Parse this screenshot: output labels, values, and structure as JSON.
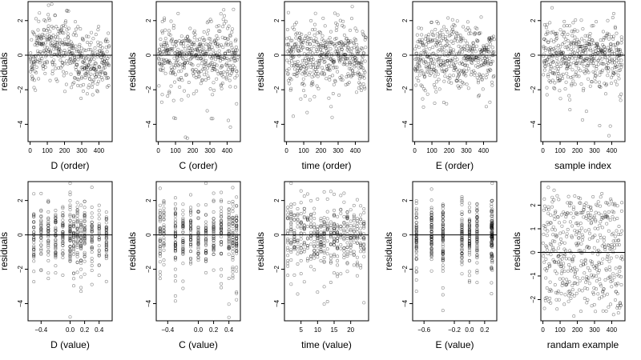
{
  "chart_data": [
    {
      "type": "scatter",
      "xlabel": "D (order)",
      "ylabel": "residuals",
      "xlim": [
        -12,
        477
      ],
      "ylim": [
        -5,
        3.1
      ],
      "xticks": [
        0,
        100,
        200,
        300,
        400
      ],
      "yticks": [
        -4,
        -2,
        0,
        2
      ],
      "hline": 0,
      "x_kind": "order",
      "n": 460,
      "pattern": "wave"
    },
    {
      "type": "scatter",
      "xlabel": "C (order)",
      "ylabel": "residuals",
      "xlim": [
        -12,
        477
      ],
      "ylim": [
        -5,
        3.1
      ],
      "xticks": [
        0,
        100,
        200,
        300,
        400
      ],
      "yticks": [
        -4,
        -2,
        0,
        2
      ],
      "hline": 0,
      "x_kind": "order",
      "n": 460,
      "pattern": "noise"
    },
    {
      "type": "scatter",
      "xlabel": "time (order)",
      "ylabel": "residuals",
      "xlim": [
        -12,
        477
      ],
      "ylim": [
        -5,
        3.1
      ],
      "xticks": [
        0,
        100,
        200,
        300,
        400
      ],
      "yticks": [
        -4,
        -2,
        0,
        2
      ],
      "hline": 0,
      "x_kind": "order",
      "n": 460,
      "pattern": "noise"
    },
    {
      "type": "scatter",
      "xlabel": "E (order)",
      "ylabel": "residuals",
      "xlim": [
        -12,
        477
      ],
      "ylim": [
        -5,
        3.1
      ],
      "xticks": [
        0,
        100,
        200,
        300,
        400
      ],
      "yticks": [
        -4,
        -2,
        0,
        2
      ],
      "hline": 0,
      "x_kind": "order",
      "n": 460,
      "pattern": "noise"
    },
    {
      "type": "scatter",
      "xlabel": "sample index",
      "ylabel": "residuals",
      "xlim": [
        -12,
        477
      ],
      "ylim": [
        -5,
        3.1
      ],
      "xticks": [
        0,
        100,
        200,
        300,
        400
      ],
      "yticks": [
        -4,
        -2,
        0,
        2
      ],
      "hline": 0,
      "x_kind": "order",
      "n": 460,
      "pattern": "noise"
    },
    {
      "type": "scatter",
      "xlabel": "D (value)",
      "ylabel": "residuals",
      "xlim": [
        -0.58,
        0.58
      ],
      "ylim": [
        -5,
        3.1
      ],
      "xticks": [
        -0.4,
        0.0,
        0.2,
        0.4
      ],
      "xticklabels": [
        "-0.4",
        "0.0",
        "0.2",
        "0.4"
      ],
      "yticks": [
        -4,
        -2,
        0,
        2
      ],
      "hline": 0,
      "x_kind": "discrete",
      "levels": [
        -0.5,
        -0.4,
        -0.3,
        -0.2,
        -0.1,
        0.0,
        0.05,
        0.1,
        0.15,
        0.2,
        0.3,
        0.4,
        0.5
      ],
      "n": 460,
      "pattern": "noise"
    },
    {
      "type": "scatter",
      "xlabel": "C (value)",
      "ylabel": "residuals",
      "xlim": [
        -0.55,
        0.55
      ],
      "ylim": [
        -5,
        3.1
      ],
      "xticks": [
        -0.4,
        0.0,
        0.2,
        0.4
      ],
      "xticklabels": [
        "-0.4",
        "0.0",
        "0.2",
        "0.4"
      ],
      "yticks": [
        -4,
        -2,
        0,
        2
      ],
      "hline": 0,
      "x_kind": "discrete",
      "levels": [
        -0.5,
        -0.45,
        -0.3,
        -0.2,
        -0.1,
        0.0,
        0.1,
        0.2,
        0.3,
        0.4,
        0.45,
        0.5
      ],
      "n": 460,
      "pattern": "noise"
    },
    {
      "type": "scatter",
      "xlabel": "time (value)",
      "ylabel": "residuals",
      "xlim": [
        0,
        25.4
      ],
      "ylim": [
        -5,
        3.1
      ],
      "xticks": [
        5,
        10,
        15,
        20
      ],
      "yticks": [
        -4,
        -2,
        0,
        2
      ],
      "hline": 0,
      "x_kind": "discrete",
      "levels": [
        1,
        2,
        3,
        4,
        5,
        6,
        7,
        8,
        9,
        10,
        11,
        12,
        13,
        14,
        15,
        16,
        17,
        18,
        19,
        20,
        21,
        22,
        23,
        24
      ],
      "n": 460,
      "pattern": "noise"
    },
    {
      "type": "scatter",
      "xlabel": "E (value)",
      "ylabel": "residuals",
      "xlim": [
        -0.75,
        0.36
      ],
      "ylim": [
        -5,
        3.1
      ],
      "xticks": [
        -0.6,
        -0.2,
        0.0,
        0.2
      ],
      "xticklabels": [
        "-0.6",
        "-0.2",
        "0.0",
        "0.2"
      ],
      "yticks": [
        -4,
        -2,
        0,
        2
      ],
      "hline": 0,
      "x_kind": "discrete",
      "levels": [
        -0.7,
        -0.5,
        -0.35,
        -0.1,
        0.0,
        0.1,
        0.29,
        0.3
      ],
      "n": 460,
      "pattern": "noise"
    },
    {
      "type": "scatter",
      "xlabel": "randam example",
      "ylabel": "residuals",
      "xlim": [
        -12,
        477
      ],
      "ylim": [
        -2.9,
        3.0
      ],
      "xticks": [
        0,
        100,
        200,
        300,
        400
      ],
      "yticks": [
        -2,
        -1,
        0,
        1,
        2
      ],
      "hline": 0,
      "x_kind": "order",
      "n": 460,
      "pattern": "uniform"
    }
  ]
}
